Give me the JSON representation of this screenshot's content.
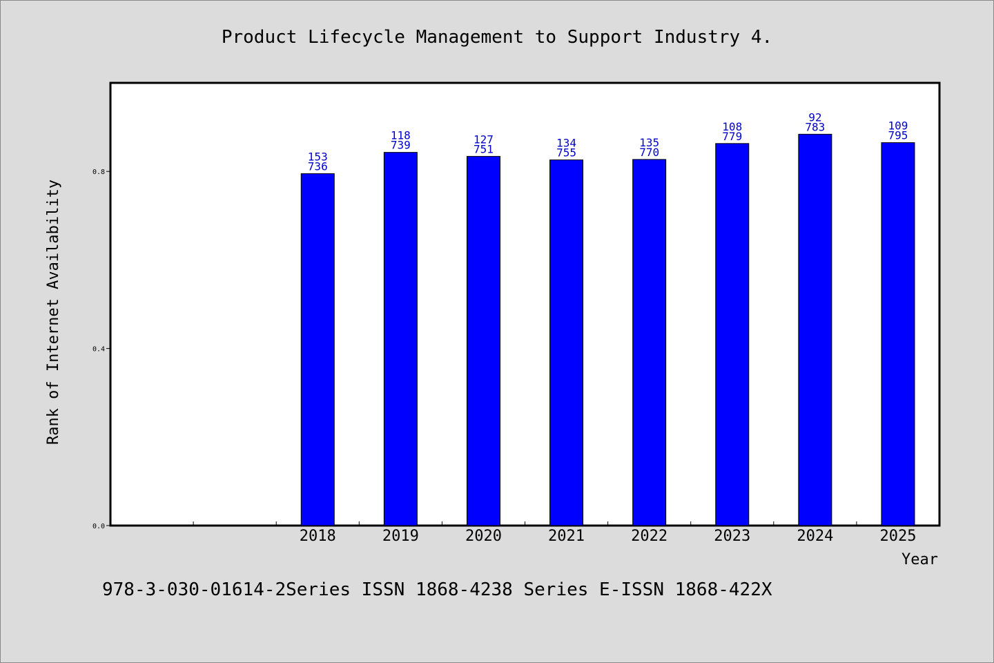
{
  "chart_data": {
    "type": "bar",
    "title": "Product Lifecycle Management to Support Industry 4.",
    "xlabel": "Year",
    "ylabel": "Rank of Internet Availability",
    "x_tick_labels": [
      "",
      "",
      "2018",
      "2019",
      "2020",
      "2021",
      "2022",
      "2023",
      "2024",
      "2025"
    ],
    "categories": [
      "2018",
      "2019",
      "2020",
      "2021",
      "2022",
      "2023",
      "2024",
      "2025"
    ],
    "values": [
      0.795,
      0.843,
      0.834,
      0.826,
      0.827,
      0.863,
      0.884,
      0.865
    ],
    "label_top": [
      "153",
      "118",
      "127",
      "134",
      "135",
      "108",
      "92",
      "109"
    ],
    "label_bottom": [
      "736",
      "739",
      "751",
      "755",
      "770",
      "779",
      "783",
      "795"
    ],
    "y_ticks": [
      "0.0",
      "0.4",
      "0.8"
    ],
    "y_tick_values": [
      0.0,
      0.4,
      0.8
    ],
    "ylim": [
      0.0,
      1.0
    ],
    "bar_color": "#0000ff",
    "label_color": "#0000cc",
    "grid": false,
    "legend": "none"
  },
  "footnote": "978-3-030-01614-2Series ISSN 1868-4238 Series E-ISSN 1868-422X"
}
